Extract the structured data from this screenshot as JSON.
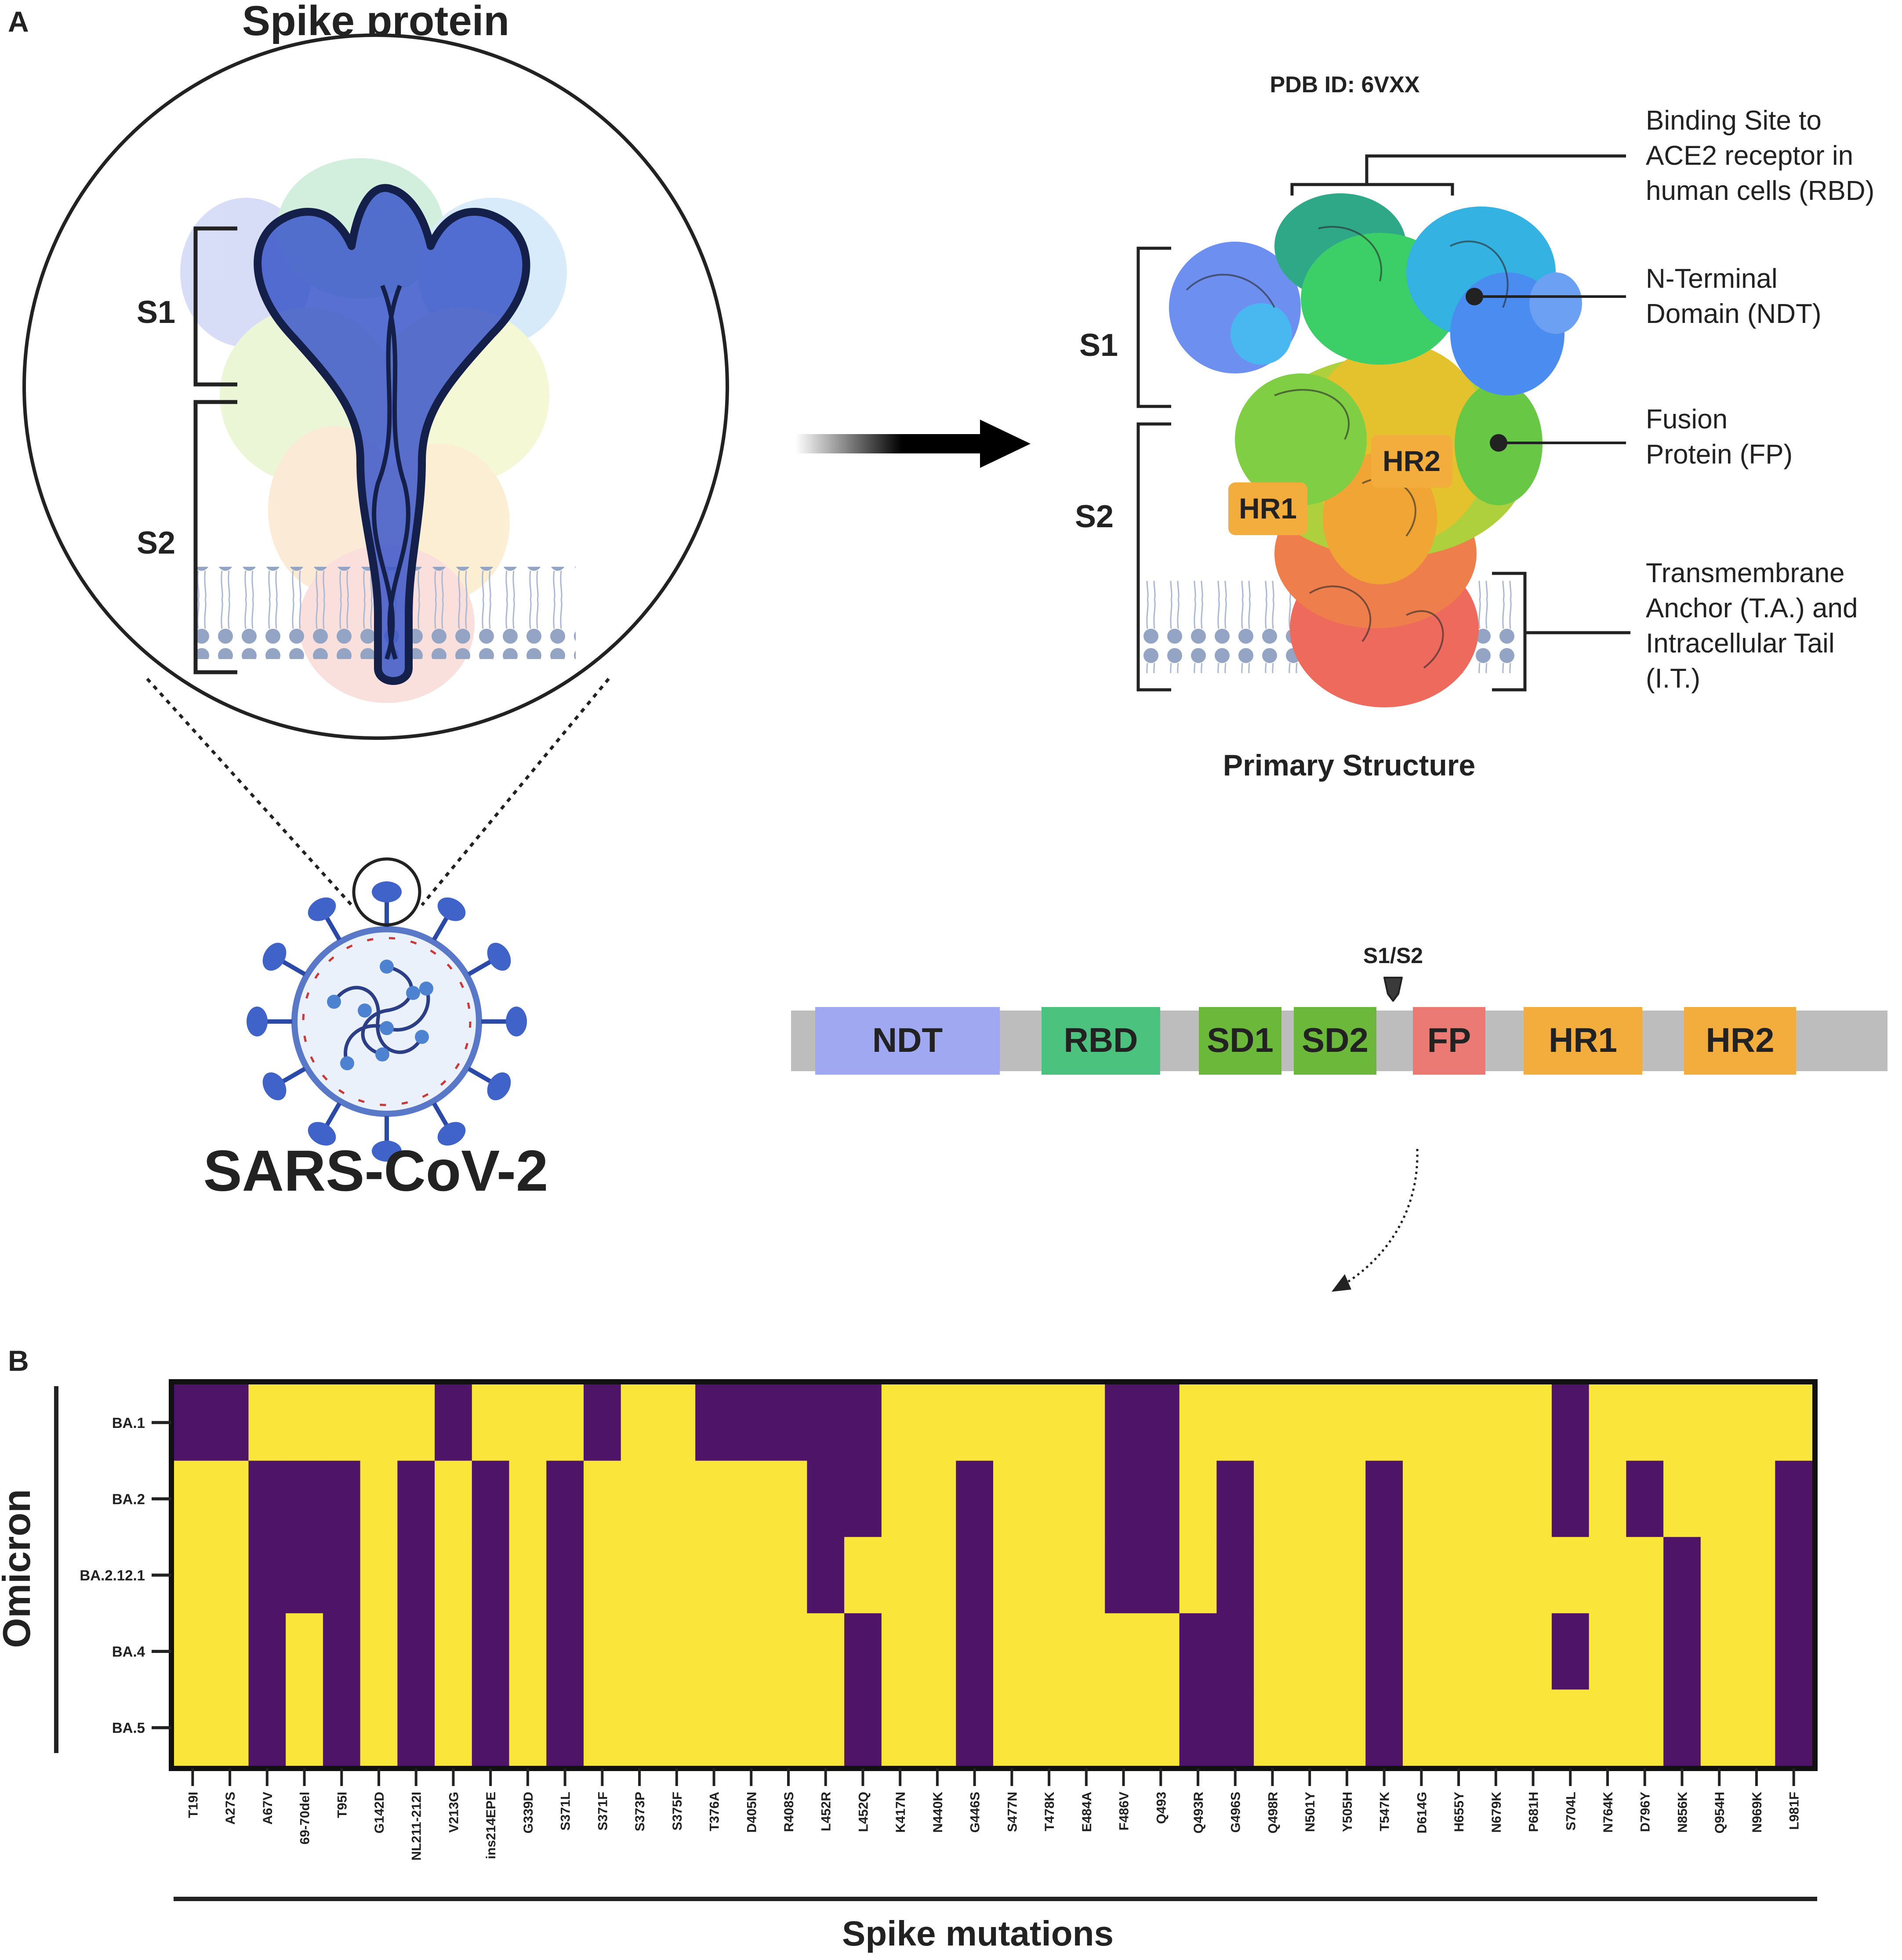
{
  "panel_a": {
    "letter": "A",
    "spike_title": "Spike protein",
    "virus_label": "SARS-CoV-2",
    "pdb_id": "PDB ID: 6VXX",
    "left_s1": "S1",
    "left_s2": "S2",
    "right_s1": "S1",
    "right_s2": "S2",
    "hr1_tag": "HR1",
    "hr2_tag": "HR2",
    "primary_structure": "Primary Structure",
    "callouts": {
      "rbd": [
        "Binding Site to",
        "ACE2 receptor in",
        "human cells (RBD)"
      ],
      "ndt": [
        "N-Terminal",
        "Domain (NDT)"
      ],
      "fp": [
        "Fusion",
        "Protein (FP)"
      ],
      "ta": [
        "Transmembrane",
        "Anchor (T.A.) and",
        "Intracellular Tail",
        "(I.T.)"
      ]
    },
    "cleavage_label": "S1/S2",
    "domains": [
      {
        "label": "NDT",
        "color": "#a0a8f2"
      },
      {
        "label": "RBD",
        "color": "#4bc27e"
      },
      {
        "label": "SD1",
        "color": "#6bb83a"
      },
      {
        "label": "SD2",
        "color": "#6bb83a"
      },
      {
        "label": "FP",
        "color": "#ec7a74"
      },
      {
        "label": "HR1",
        "color": "#f3ad3c"
      },
      {
        "label": "HR2",
        "color": "#f3ad3c"
      }
    ]
  },
  "panel_b": {
    "letter": "B",
    "group_label": "Omicron",
    "colors": {
      "present": "#4e1468",
      "absent": "#fae63b"
    },
    "chart_data": {
      "type": "heatmap",
      "title": "",
      "xlabel": "Spike mutations",
      "ylabel": "Omicron",
      "rows": [
        "BA.1",
        "BA.2",
        "BA.2.12.1",
        "BA.4",
        "BA.5"
      ],
      "columns": [
        "T19I",
        "A27S",
        "A67V",
        "69-70del",
        "T95I",
        "G142D",
        "NL211-212I",
        "V213G",
        "ins214EPE",
        "G339D",
        "S371L",
        "S371F",
        "S373P",
        "S375F",
        "T376A",
        "D405N",
        "R408S",
        "L452R",
        "L452Q",
        "K417N",
        "N440K",
        "G446S",
        "S477N",
        "T478K",
        "E484A",
        "F486V",
        "Q493",
        "Q493R",
        "G496S",
        "Q498R",
        "N501Y",
        "Y505H",
        "T547K",
        "D614G",
        "H655Y",
        "N679K",
        "P681H",
        "S704L",
        "N764K",
        "D796Y",
        "N856K",
        "Q954H",
        "N969K",
        "L981F"
      ],
      "values": [
        [
          1,
          1,
          0,
          0,
          0,
          0,
          0,
          1,
          0,
          0,
          0,
          1,
          0,
          0,
          1,
          1,
          1,
          1,
          1,
          0,
          0,
          0,
          0,
          0,
          0,
          1,
          1,
          0,
          0,
          0,
          0,
          0,
          0,
          0,
          0,
          0,
          0,
          1,
          0,
          0,
          0,
          0,
          0,
          0
        ],
        [
          0,
          0,
          1,
          1,
          1,
          0,
          1,
          0,
          1,
          0,
          1,
          0,
          0,
          0,
          0,
          0,
          0,
          1,
          1,
          0,
          0,
          1,
          0,
          0,
          0,
          1,
          1,
          0,
          1,
          0,
          0,
          0,
          1,
          0,
          0,
          0,
          0,
          1,
          0,
          1,
          0,
          0,
          0,
          1
        ],
        [
          0,
          0,
          1,
          1,
          1,
          0,
          1,
          0,
          1,
          0,
          1,
          0,
          0,
          0,
          0,
          0,
          0,
          1,
          0,
          0,
          0,
          1,
          0,
          0,
          0,
          1,
          1,
          0,
          1,
          0,
          0,
          0,
          1,
          0,
          0,
          0,
          0,
          0,
          0,
          0,
          1,
          0,
          0,
          1
        ],
        [
          0,
          0,
          1,
          0,
          1,
          0,
          1,
          0,
          1,
          0,
          1,
          0,
          0,
          0,
          0,
          0,
          0,
          0,
          1,
          0,
          0,
          1,
          0,
          0,
          0,
          0,
          0,
          1,
          1,
          0,
          0,
          0,
          1,
          0,
          0,
          0,
          0,
          1,
          0,
          0,
          1,
          0,
          0,
          1
        ],
        [
          0,
          0,
          1,
          0,
          1,
          0,
          1,
          0,
          1,
          0,
          1,
          0,
          0,
          0,
          0,
          0,
          0,
          0,
          1,
          0,
          0,
          1,
          0,
          0,
          0,
          0,
          0,
          1,
          1,
          0,
          0,
          0,
          1,
          0,
          0,
          0,
          0,
          0,
          0,
          0,
          1,
          0,
          0,
          1
        ]
      ],
      "legend": "1 = mutation present (purple), 0 = absent (yellow)"
    }
  }
}
